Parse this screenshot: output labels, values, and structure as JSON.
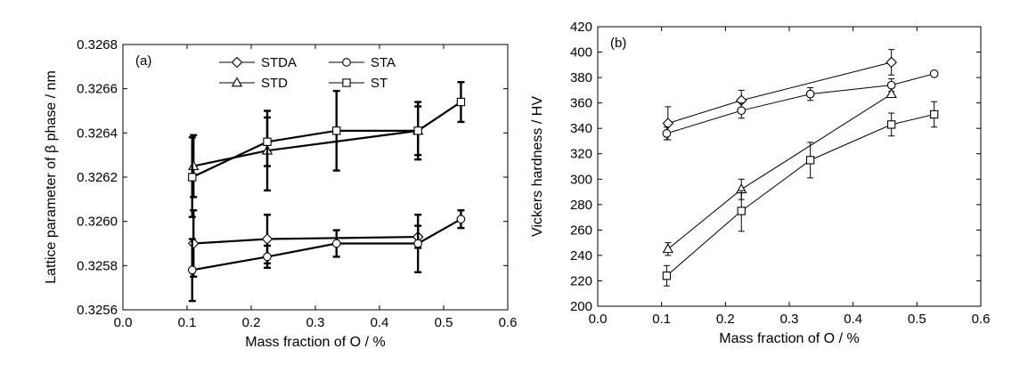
{
  "chart_data": [
    {
      "type": "line",
      "panel_label": "(a)",
      "xlabel": "Mass fraction of O / %",
      "ylabel": "Lattice parameter of β phase / nm",
      "xlim": [
        0.0,
        0.6
      ],
      "ylim": [
        0.3256,
        0.3268
      ],
      "x_ticks": [
        0.0,
        0.1,
        0.2,
        0.3,
        0.4,
        0.5,
        0.6
      ],
      "x_tick_labels": [
        "0.0",
        "0.1",
        "0.2",
        "0.3",
        "0.4",
        "0.5",
        "0.6"
      ],
      "y_ticks": [
        0.3256,
        0.3258,
        0.326,
        0.3262,
        0.3264,
        0.3266,
        0.3268
      ],
      "y_tick_labels": [
        "0.3256",
        "0.3258",
        "0.3260",
        "0.3262",
        "0.3264",
        "0.3266",
        "0.3268"
      ],
      "grid": false,
      "legend_position": "top-center",
      "line_style": "thick",
      "series": [
        {
          "name": "STDA",
          "marker": "diamond",
          "x": [
            0.11,
            0.225,
            0.46
          ],
          "y": [
            0.3259,
            0.32592,
            0.32593
          ],
          "err": [
            0.00015,
            0.00011,
            5e-05
          ]
        },
        {
          "name": "STA",
          "marker": "circle",
          "x": [
            0.108,
            0.225,
            0.333,
            0.46,
            0.527
          ],
          "y": [
            0.32578,
            0.32584,
            0.3259,
            0.3259,
            0.32601
          ],
          "err": [
            0.00014,
            5e-05,
            6e-05,
            0.00013,
            4e-05
          ]
        },
        {
          "name": "STD",
          "marker": "triangle",
          "x": [
            0.11,
            0.225,
            0.46
          ],
          "y": [
            0.32625,
            0.32632,
            0.32641
          ],
          "err": [
            0.00014,
            0.00018,
            0.00013
          ]
        },
        {
          "name": "ST",
          "marker": "square",
          "x": [
            0.108,
            0.225,
            0.333,
            0.46,
            0.527
          ],
          "y": [
            0.3262,
            0.32636,
            0.32641,
            0.32641,
            0.32654
          ],
          "err": [
            0.00018,
            0.00011,
            0.00018,
            0.00011,
            9e-05
          ]
        }
      ]
    },
    {
      "type": "line",
      "panel_label": "(b)",
      "xlabel": "Mass fraction of O / %",
      "ylabel": "Vickers hardness / HV",
      "xlim": [
        0.0,
        0.6
      ],
      "ylim": [
        200,
        420
      ],
      "x_ticks": [
        0.0,
        0.1,
        0.2,
        0.3,
        0.4,
        0.5,
        0.6
      ],
      "x_tick_labels": [
        "0.0",
        "0.1",
        "0.2",
        "0.3",
        "0.4",
        "0.5",
        "0.6"
      ],
      "y_ticks": [
        200,
        220,
        240,
        260,
        280,
        300,
        320,
        340,
        360,
        380,
        400,
        420
      ],
      "y_tick_labels": [
        "200",
        "220",
        "240",
        "260",
        "280",
        "300",
        "320",
        "340",
        "360",
        "380",
        "400",
        "420"
      ],
      "grid": false,
      "line_style": "thin",
      "series": [
        {
          "name": "STDA",
          "marker": "diamond",
          "x": [
            0.11,
            0.225,
            0.46
          ],
          "y": [
            344,
            362,
            392
          ],
          "err": [
            13,
            8,
            10
          ]
        },
        {
          "name": "STA",
          "marker": "circle",
          "x": [
            0.108,
            0.225,
            0.333,
            0.46,
            0.527
          ],
          "y": [
            336,
            354,
            367,
            374,
            383
          ],
          "err": [
            5,
            6,
            5,
            5,
            2
          ]
        },
        {
          "name": "STD",
          "marker": "triangle",
          "x": [
            0.11,
            0.225,
            0.46
          ],
          "y": [
            245,
            292,
            367
          ],
          "err": [
            5,
            8,
            0
          ]
        },
        {
          "name": "ST",
          "marker": "square",
          "x": [
            0.108,
            0.225,
            0.333,
            0.46,
            0.527
          ],
          "y": [
            224,
            275,
            315,
            343,
            351
          ],
          "err": [
            8,
            16,
            14,
            9,
            10
          ]
        }
      ]
    }
  ]
}
